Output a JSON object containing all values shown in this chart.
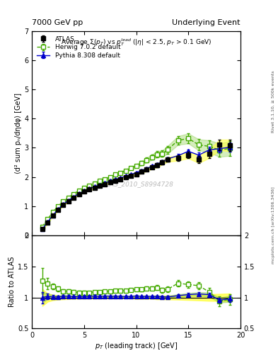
{
  "title_left": "7000 GeV pp",
  "title_right": "Underlying Event",
  "ylabel_main": "⟨d² sum pₙ/dηdφ⟩ [GeV]",
  "ylabel_ratio": "Ratio to ATLAS",
  "xlabel": "p_T (leading track) [GeV]",
  "right_label1": "Rivet 3.1.10, ≥ 500k events",
  "right_label2": "mcplots.cern.ch [arXiv:1306.3436]",
  "watermark": "ATLAS_2010_S8994728",
  "xlim": [
    0,
    20
  ],
  "ylim_main": [
    0,
    7
  ],
  "ylim_ratio": [
    0.5,
    2.0
  ],
  "atlas_x": [
    1.0,
    1.5,
    2.0,
    2.5,
    3.0,
    3.5,
    4.0,
    4.5,
    5.0,
    5.5,
    6.0,
    6.5,
    7.0,
    7.5,
    8.0,
    8.5,
    9.0,
    9.5,
    10.0,
    10.5,
    11.0,
    11.5,
    12.0,
    12.5,
    13.0,
    14.0,
    15.0,
    16.0,
    17.0,
    18.0,
    19.0
  ],
  "atlas_y": [
    0.22,
    0.45,
    0.68,
    0.88,
    1.05,
    1.18,
    1.3,
    1.41,
    1.5,
    1.57,
    1.63,
    1.7,
    1.75,
    1.82,
    1.88,
    1.93,
    2.0,
    2.05,
    2.1,
    2.18,
    2.25,
    2.33,
    2.4,
    2.5,
    2.6,
    2.65,
    2.75,
    2.6,
    2.8,
    3.1,
    3.08
  ],
  "atlas_yerr": [
    0.03,
    0.03,
    0.03,
    0.03,
    0.03,
    0.03,
    0.03,
    0.03,
    0.03,
    0.03,
    0.03,
    0.03,
    0.03,
    0.03,
    0.03,
    0.03,
    0.03,
    0.03,
    0.05,
    0.05,
    0.05,
    0.05,
    0.07,
    0.07,
    0.08,
    0.09,
    0.11,
    0.12,
    0.15,
    0.18,
    0.2
  ],
  "herwig_x": [
    1.0,
    1.5,
    2.0,
    2.5,
    3.0,
    3.5,
    4.0,
    4.5,
    5.0,
    5.5,
    6.0,
    6.5,
    7.0,
    7.5,
    8.0,
    8.5,
    9.0,
    9.5,
    10.0,
    10.5,
    11.0,
    11.5,
    12.0,
    12.5,
    13.0,
    14.0,
    15.0,
    16.0,
    17.0,
    18.0,
    19.0
  ],
  "herwig_y": [
    0.29,
    0.55,
    0.8,
    1.0,
    1.16,
    1.3,
    1.42,
    1.53,
    1.62,
    1.7,
    1.78,
    1.86,
    1.93,
    2.0,
    2.08,
    2.15,
    2.22,
    2.3,
    2.38,
    2.47,
    2.58,
    2.68,
    2.78,
    2.8,
    2.93,
    3.25,
    3.32,
    3.1,
    3.05,
    2.92,
    2.98
  ],
  "herwig_yerr": [
    0.06,
    0.05,
    0.04,
    0.04,
    0.04,
    0.04,
    0.04,
    0.04,
    0.04,
    0.04,
    0.04,
    0.04,
    0.04,
    0.04,
    0.04,
    0.04,
    0.05,
    0.05,
    0.06,
    0.07,
    0.08,
    0.09,
    0.1,
    0.11,
    0.13,
    0.15,
    0.17,
    0.19,
    0.21,
    0.23,
    0.25
  ],
  "pythia_x": [
    1.0,
    1.5,
    2.0,
    2.5,
    3.0,
    3.5,
    4.0,
    4.5,
    5.0,
    5.5,
    6.0,
    6.5,
    7.0,
    7.5,
    8.0,
    8.5,
    9.0,
    9.5,
    10.0,
    10.5,
    11.0,
    11.5,
    12.0,
    12.5,
    13.0,
    14.0,
    15.0,
    16.0,
    17.0,
    18.0,
    19.0
  ],
  "pythia_y": [
    0.22,
    0.46,
    0.69,
    0.89,
    1.07,
    1.2,
    1.32,
    1.43,
    1.52,
    1.6,
    1.67,
    1.73,
    1.79,
    1.86,
    1.92,
    1.97,
    2.03,
    2.09,
    2.15,
    2.22,
    2.29,
    2.37,
    2.44,
    2.53,
    2.62,
    2.73,
    2.88,
    2.75,
    2.93,
    2.97,
    3.02
  ],
  "pythia_yerr": [
    0.02,
    0.02,
    0.02,
    0.02,
    0.02,
    0.02,
    0.02,
    0.02,
    0.02,
    0.02,
    0.02,
    0.02,
    0.02,
    0.02,
    0.02,
    0.02,
    0.02,
    0.02,
    0.03,
    0.03,
    0.03,
    0.03,
    0.04,
    0.04,
    0.05,
    0.06,
    0.07,
    0.08,
    0.1,
    0.12,
    0.15
  ],
  "atlas_color": "#000000",
  "herwig_color": "#44aa00",
  "pythia_color": "#0000cc",
  "herwig_ratio_y": [
    1.27,
    1.22,
    1.18,
    1.14,
    1.1,
    1.1,
    1.09,
    1.08,
    1.08,
    1.08,
    1.09,
    1.09,
    1.1,
    1.1,
    1.11,
    1.11,
    1.11,
    1.12,
    1.13,
    1.13,
    1.15,
    1.15,
    1.16,
    1.12,
    1.13,
    1.23,
    1.21,
    1.19,
    1.09,
    0.94,
    0.97
  ],
  "pythia_ratio_y": [
    1.0,
    1.02,
    1.01,
    1.01,
    1.02,
    1.02,
    1.015,
    1.015,
    1.013,
    1.019,
    1.024,
    1.018,
    1.023,
    1.022,
    1.021,
    1.021,
    1.015,
    1.019,
    1.024,
    1.018,
    1.018,
    1.017,
    1.017,
    1.012,
    1.008,
    1.03,
    1.047,
    1.058,
    1.046,
    0.958,
    0.98
  ]
}
